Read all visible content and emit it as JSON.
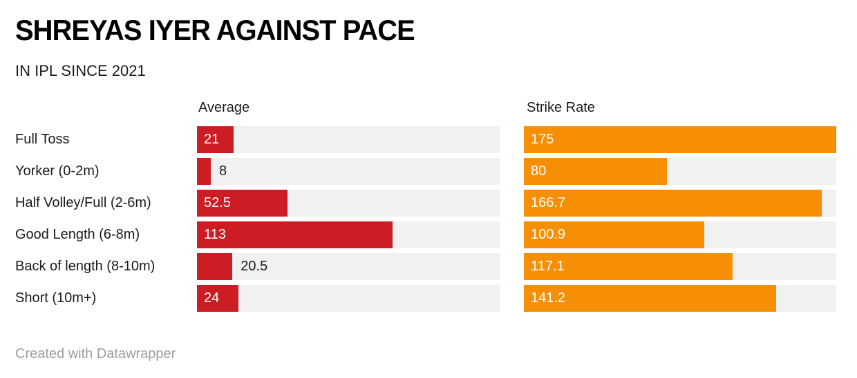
{
  "title": "SHREYAS IYER AGAINST PACE",
  "subtitle": "IN IPL SINCE 2021",
  "footer": "Created with Datawrapper",
  "colors": {
    "average_bar": "#cc1d24",
    "strike_rate_bar": "#f78f05",
    "track": "#f1f1f1",
    "value_inside_text": "#ffffff",
    "value_outside_text": "#1a1a1a"
  },
  "chart_data": {
    "type": "bar",
    "orientation": "horizontal",
    "title": "SHREYAS IYER AGAINST PACE",
    "subtitle": "IN IPL SINCE 2021",
    "axis_max_shared": 175,
    "grid": false,
    "legend_position": "column-headers",
    "categories": [
      "Full Toss",
      "Yorker (0-2m)",
      "Half Volley/Full (2-6m)",
      "Good Length (6-8m)",
      "Back of length (8-10m)",
      "Short (10m+)"
    ],
    "series": [
      {
        "name": "Average",
        "color": "#cc1d24",
        "values": [
          21,
          8,
          52.5,
          113,
          20.5,
          24
        ]
      },
      {
        "name": "Strike Rate",
        "color": "#f78f05",
        "values": [
          175,
          80,
          166.7,
          100.9,
          117.1,
          141.2
        ]
      }
    ]
  }
}
